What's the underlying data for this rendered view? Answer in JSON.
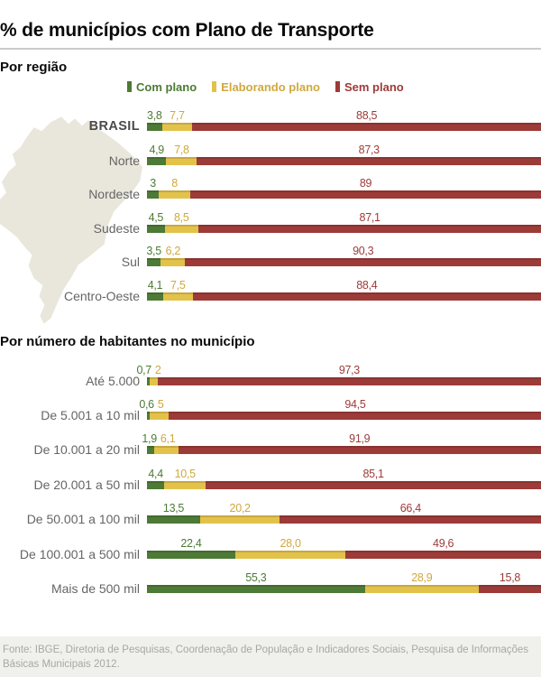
{
  "title": "% de municípios com Plano de Transporte",
  "colors": {
    "com_plano": "#4d7a35",
    "elaborando_plano": "#e3c24a",
    "sem_plano": "#9d3b38",
    "elaborando_text": "#d0a83d",
    "map_fill": "#e9e6dc",
    "footer_bg": "#f0f0ec"
  },
  "legend": {
    "items": [
      {
        "label": "Com plano",
        "color": "#4d7a35",
        "text_color": "#4d7a35"
      },
      {
        "label": "Elaborando plano",
        "color": "#e3c24a",
        "text_color": "#d0a83d"
      },
      {
        "label": "Sem plano",
        "color": "#9d3b38",
        "text_color": "#9d3b38"
      }
    ]
  },
  "sections": [
    {
      "heading": "Por região",
      "rows": [
        {
          "label": "BRASIL",
          "bold": true,
          "values": [
            3.8,
            7.7,
            88.5
          ],
          "display": [
            "3,8",
            "7,7",
            "88,5"
          ]
        },
        {
          "label": "Norte",
          "values": [
            4.9,
            7.8,
            87.3
          ],
          "display": [
            "4,9",
            "7,8",
            "87,3"
          ]
        },
        {
          "label": "Nordeste",
          "values": [
            3,
            8,
            89
          ],
          "display": [
            "3",
            "8",
            "89"
          ]
        },
        {
          "label": "Sudeste",
          "values": [
            4.5,
            8.5,
            87.1
          ],
          "display": [
            "4,5",
            "8,5",
            "87,1"
          ]
        },
        {
          "label": "Sul",
          "values": [
            3.5,
            6.2,
            90.3
          ],
          "display": [
            "3,5",
            "6,2",
            "90,3"
          ]
        },
        {
          "label": "Centro-Oeste",
          "values": [
            4.1,
            7.5,
            88.4
          ],
          "display": [
            "4,1",
            "7,5",
            "88,4"
          ]
        }
      ]
    },
    {
      "heading": "Por número de habitantes no município",
      "rows": [
        {
          "label": "Até 5.000",
          "values": [
            0.7,
            2,
            97.3
          ],
          "display": [
            "0,7",
            "2",
            "97,3"
          ]
        },
        {
          "label": "De 5.001 a 10 mil",
          "values": [
            0.6,
            5,
            94.5
          ],
          "display": [
            "0,6",
            "5",
            "94,5"
          ]
        },
        {
          "label": "De 10.001 a 20 mil",
          "values": [
            1.9,
            6.1,
            91.9
          ],
          "display": [
            "1,9",
            "6,1",
            "91,9"
          ]
        },
        {
          "label": "De 20.001 a 50 mil",
          "values": [
            4.4,
            10.5,
            85.1
          ],
          "display": [
            "4,4",
            "10,5",
            "85,1"
          ]
        },
        {
          "label": "De 50.001 a 100 mil",
          "values": [
            13.5,
            20.2,
            66.4
          ],
          "display": [
            "13,5",
            "20,2",
            "66,4"
          ]
        },
        {
          "label": "De 100.001 a 500 mil",
          "values": [
            22.4,
            28.0,
            49.6
          ],
          "display": [
            "22,4",
            "28,0",
            "49,6"
          ]
        },
        {
          "label": "Mais de 500 mil",
          "values": [
            55.3,
            28.9,
            15.8
          ],
          "display": [
            "55,3",
            "28,9",
            "15,8"
          ]
        }
      ]
    }
  ],
  "footer": {
    "source": "Fonte: IBGE, Diretoria de Pesquisas, Coordenação de População e Indicadores Sociais, Pesquisa de Informações Básicas Municipais 2012."
  },
  "chart_data": [
    {
      "type": "bar",
      "orientation": "horizontal",
      "stacked": true,
      "title": "Por região",
      "categories": [
        "BRASIL",
        "Norte",
        "Nordeste",
        "Sudeste",
        "Sul",
        "Centro-Oeste"
      ],
      "series": [
        {
          "name": "Com plano",
          "values": [
            3.8,
            4.9,
            3,
            4.5,
            3.5,
            4.1
          ]
        },
        {
          "name": "Elaborando plano",
          "values": [
            7.7,
            7.8,
            8,
            8.5,
            6.2,
            7.5
          ]
        },
        {
          "name": "Sem plano",
          "values": [
            88.5,
            87.3,
            89,
            87.1,
            90.3,
            88.4
          ]
        }
      ],
      "xlim": [
        0,
        100
      ],
      "grid": false,
      "legend_position": "top",
      "value_labels": true
    },
    {
      "type": "bar",
      "orientation": "horizontal",
      "stacked": true,
      "title": "Por número de habitantes no município",
      "categories": [
        "Até 5.000",
        "De 5.001 a 10 mil",
        "De 10.001 a 20 mil",
        "De 20.001 a 50 mil",
        "De 50.001 a 100 mil",
        "De 100.001 a 500 mil",
        "Mais de 500 mil"
      ],
      "series": [
        {
          "name": "Com plano",
          "values": [
            0.7,
            0.6,
            1.9,
            4.4,
            13.5,
            22.4,
            55.3
          ]
        },
        {
          "name": "Elaborando plano",
          "values": [
            2,
            5,
            6.1,
            10.5,
            20.2,
            28.0,
            28.9
          ]
        },
        {
          "name": "Sem plano",
          "values": [
            97.3,
            94.5,
            91.9,
            85.1,
            66.4,
            49.6,
            15.8
          ]
        }
      ],
      "xlim": [
        0,
        100
      ],
      "grid": false,
      "legend_position": "top",
      "value_labels": true
    }
  ]
}
